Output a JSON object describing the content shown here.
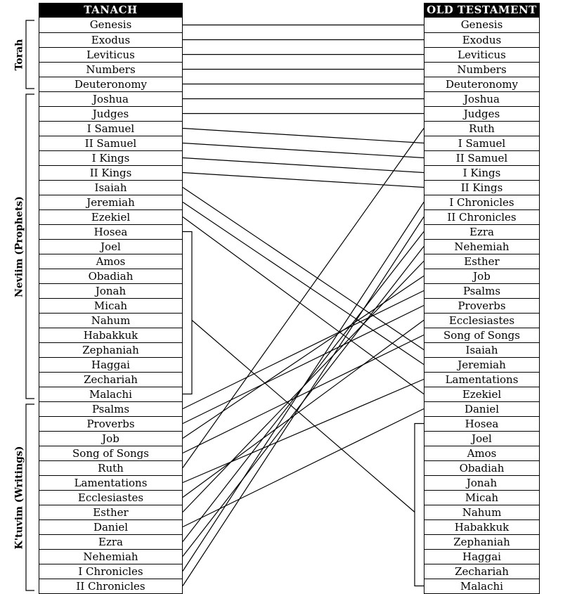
{
  "left_header": "TANACH",
  "right_header": "OLD TESTAMENT",
  "left_books": [
    "Genesis",
    "Exodus",
    "Leviticus",
    "Numbers",
    "Deuteronomy",
    "Joshua",
    "Judges",
    "I Samuel",
    "II Samuel",
    "I Kings",
    "II Kings",
    "Isaiah",
    "Jeremiah",
    "Ezekiel",
    "Hosea",
    "Joel",
    "Amos",
    "Obadiah",
    "Jonah",
    "Micah",
    "Nahum",
    "Habakkuk",
    "Zephaniah",
    "Haggai",
    "Zechariah",
    "Malachi",
    "Psalms",
    "Proverbs",
    "Job",
    "Song of Songs",
    "Ruth",
    "Lamentations",
    "Ecclesiastes",
    "Esther",
    "Daniel",
    "Ezra",
    "Nehemiah",
    "I Chronicles",
    "II Chronicles"
  ],
  "right_books": [
    "Genesis",
    "Exodus",
    "Leviticus",
    "Numbers",
    "Deuteronomy",
    "Joshua",
    "Judges",
    "Ruth",
    "I Samuel",
    "II Samuel",
    "I Kings",
    "II Kings",
    "I Chronicles",
    "II Chronicles",
    "Ezra",
    "Nehemiah",
    "Esther",
    "Job",
    "Psalms",
    "Proverbs",
    "Ecclesiastes",
    "Song of Songs",
    "Isaiah",
    "Jeremiah",
    "Lamentations",
    "Ezekiel",
    "Daniel",
    "Hosea",
    "Joel",
    "Amos",
    "Obadiah",
    "Jonah",
    "Micah",
    "Nahum",
    "Habakkuk",
    "Zephaniah",
    "Haggai",
    "Zechariah",
    "Malachi"
  ],
  "sections": [
    {
      "label": "Torah",
      "start": 0,
      "end": 4
    },
    {
      "label": "Neviim (Prophets)",
      "start": 5,
      "end": 25
    },
    {
      "label": "K'tuvim (Writings)",
      "start": 26,
      "end": 38
    }
  ],
  "minor_prophets_group": {
    "left_start": 14,
    "left_end": 25,
    "left_connect_row": 20,
    "right_start": 27,
    "right_end": 38,
    "right_connect_row": 33
  }
}
